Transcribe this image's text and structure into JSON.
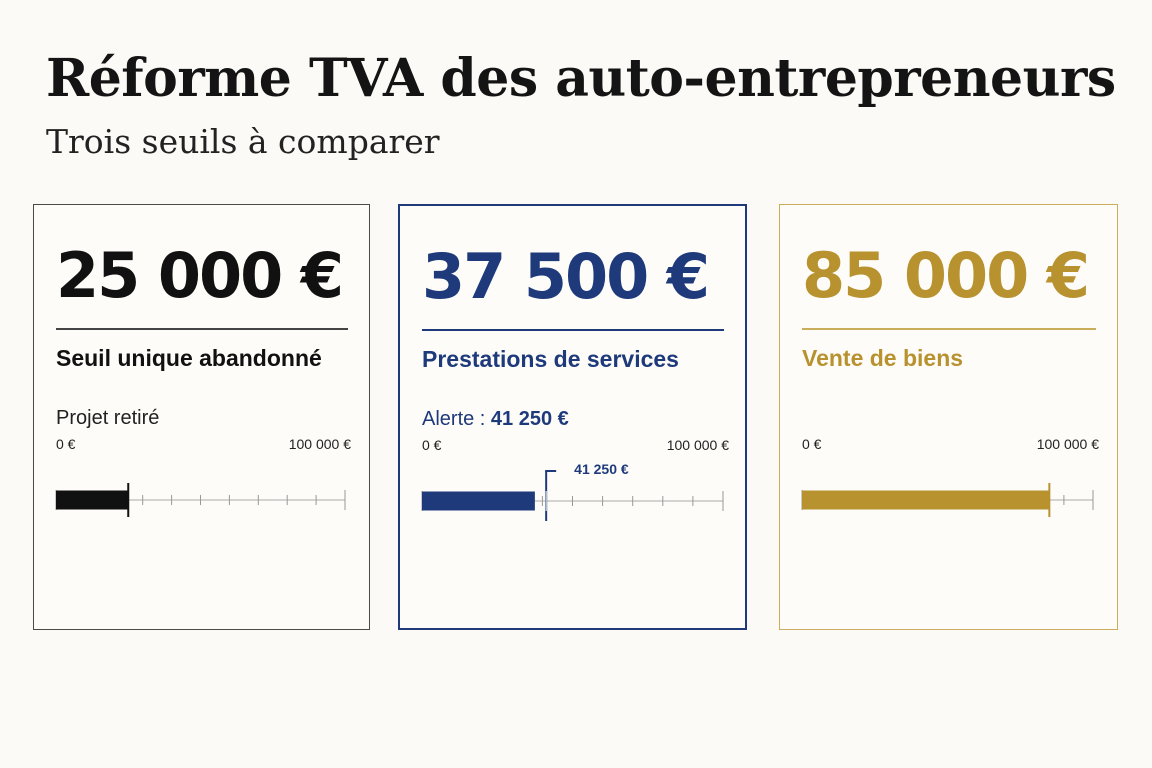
{
  "title": "Réforme TVA des auto-entrepreneurs",
  "subtitle": "Trois seuils à comparer",
  "chart_data": {
    "type": "bar",
    "axis": {
      "min": 0,
      "max": 100000,
      "min_label": "0 €",
      "max_label": "100 000 €"
    },
    "cards": [
      {
        "amount_label": "25 000 €",
        "value": 25000,
        "label": "Seuil unique abandonné",
        "note": "Projet retiré",
        "note_value": "",
        "color": "#111111",
        "text_color": "#111111",
        "marker": 25000,
        "marker_label": ""
      },
      {
        "amount_label": "37 500 €",
        "value": 37500,
        "label": "Prestations de services",
        "note": "Alerte : ",
        "note_value": "41 250 €",
        "color": "#1e3a7b",
        "text_color": "#1e3a7b",
        "marker": 41250,
        "marker_label": "41 250 €"
      },
      {
        "amount_label": "85 000 €",
        "value": 85000,
        "label": "Vente de biens",
        "note": "",
        "note_value": "",
        "color": "#b8922f",
        "text_color": "#b8922f",
        "marker": 85000,
        "marker_label": ""
      }
    ]
  }
}
